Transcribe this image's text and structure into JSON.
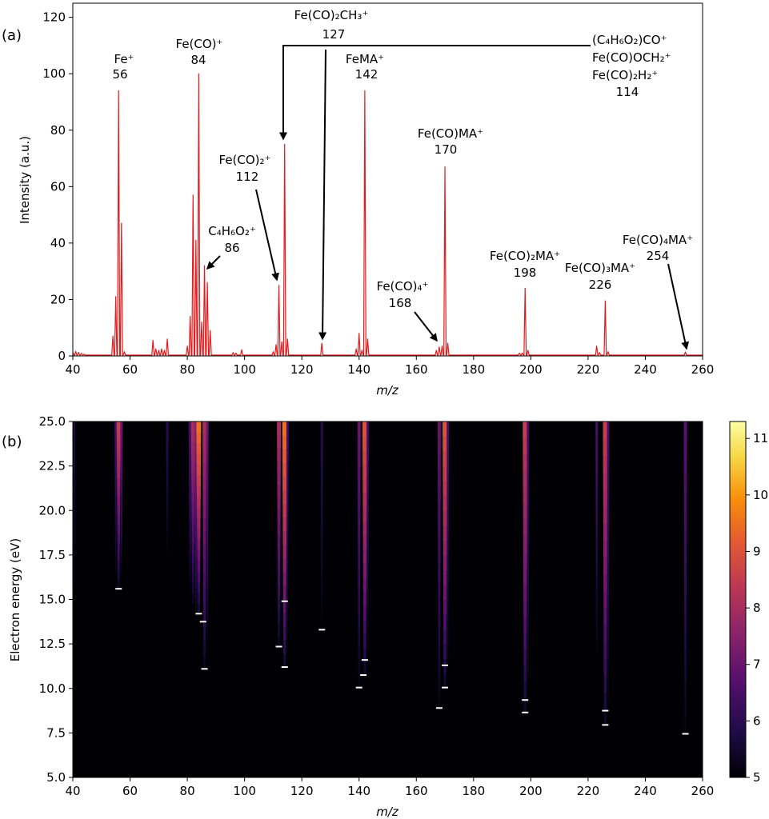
{
  "chart_data": [
    {
      "type": "line",
      "panel_label": "(a)",
      "xlabel": "m/z",
      "ylabel": "Intensity (a.u.)",
      "xlim": [
        40,
        260
      ],
      "ylim": [
        0,
        125
      ],
      "xticks": [
        40,
        60,
        80,
        100,
        120,
        140,
        160,
        180,
        200,
        220,
        240,
        260
      ],
      "yticks": [
        0,
        20,
        40,
        60,
        80,
        100,
        120
      ],
      "line_color": "#e41a1c",
      "series": [
        {
          "name": "mass spectrum",
          "peaks": [
            [
              40,
              1.2
            ],
            [
              41,
              1.6
            ],
            [
              42,
              1.3
            ],
            [
              43,
              0.9
            ],
            [
              44,
              0.6
            ],
            [
              54,
              7
            ],
            [
              55,
              21
            ],
            [
              56,
              94
            ],
            [
              57,
              47
            ],
            [
              58,
              1.5
            ],
            [
              68,
              5.5
            ],
            [
              69,
              2.5
            ],
            [
              70,
              2
            ],
            [
              71,
              2.5
            ],
            [
              72,
              2
            ],
            [
              73,
              6
            ],
            [
              80,
              3.5
            ],
            [
              81,
              14
            ],
            [
              82,
              57
            ],
            [
              83,
              41
            ],
            [
              84,
              100
            ],
            [
              85,
              12
            ],
            [
              86,
              32
            ],
            [
              87,
              26
            ],
            [
              88,
              9
            ],
            [
              96,
              1.2
            ],
            [
              97,
              1
            ],
            [
              99,
              2.2
            ],
            [
              110,
              1.5
            ],
            [
              111,
              4
            ],
            [
              112,
              25
            ],
            [
              113,
              5
            ],
            [
              114,
              75
            ],
            [
              115,
              6
            ],
            [
              127,
              4.5
            ],
            [
              139,
              2.5
            ],
            [
              140,
              8
            ],
            [
              141,
              2
            ],
            [
              142,
              94
            ],
            [
              143,
              6
            ],
            [
              167,
              2
            ],
            [
              168,
              3.2
            ],
            [
              169,
              3.5
            ],
            [
              170,
              67
            ],
            [
              171,
              4.5
            ],
            [
              196,
              1
            ],
            [
              197,
              1
            ],
            [
              198,
              24
            ],
            [
              199,
              2
            ],
            [
              223,
              3.5
            ],
            [
              224,
              1.2
            ],
            [
              226,
              19.5
            ],
            [
              227,
              1.5
            ],
            [
              254,
              1.4
            ]
          ]
        }
      ],
      "annotations": [
        {
          "formula": "Fe⁺",
          "mass": "56"
        },
        {
          "formula": "Fe(CO)⁺",
          "mass": "84"
        },
        {
          "formula": "Fe(CO)₂CH₃⁺",
          "mass": "127"
        },
        {
          "formula": "FeMA⁺",
          "mass": "142"
        },
        {
          "formula_lines": [
            "(C₄H₆O₂)CO⁺",
            "Fe(CO)OCH₂⁺",
            "Fe(CO)₂H₂⁺"
          ],
          "mass": "114"
        },
        {
          "formula": "Fe(CO)MA⁺",
          "mass": "170"
        },
        {
          "formula": "Fe(CO)₂⁺",
          "mass": "112"
        },
        {
          "formula": "C₄H₆O₂⁺",
          "mass": "86"
        },
        {
          "formula": "Fe(CO)₄⁺",
          "mass": "168"
        },
        {
          "formula": "Fe(CO)₂MA⁺",
          "mass": "198"
        },
        {
          "formula": "Fe(CO)₃MA⁺",
          "mass": "226"
        },
        {
          "formula": "Fe(CO)₄MA⁺",
          "mass": "254"
        }
      ]
    },
    {
      "type": "heatmap",
      "panel_label": "(b)",
      "xlabel": "m/z",
      "ylabel": "Electron energy (eV)",
      "xlim": [
        40,
        260
      ],
      "ylim": [
        5.0,
        25.0
      ],
      "xticks": [
        40,
        60,
        80,
        100,
        120,
        140,
        160,
        180,
        200,
        220,
        240,
        260
      ],
      "yticks": [
        "5.0",
        "7.5",
        "10.0",
        "12.5",
        "15.0",
        "17.5",
        "20.0",
        "22.5",
        "25.0"
      ],
      "colormap": "inferno",
      "colorbar_range": [
        5,
        11.3
      ],
      "colorbar_ticks": [
        5,
        6,
        7,
        8,
        9,
        10,
        11
      ],
      "appearance_energies": [
        [
          56,
          15.6
        ],
        [
          84,
          14.2
        ],
        [
          85.5,
          13.75
        ],
        [
          86,
          11.1
        ],
        [
          112,
          12.35
        ],
        [
          114,
          14.9
        ],
        [
          114,
          11.2
        ],
        [
          127,
          13.3
        ],
        [
          140,
          10.05
        ],
        [
          141.5,
          10.75
        ],
        [
          142,
          11.6
        ],
        [
          168,
          8.9
        ],
        [
          170,
          10.05
        ],
        [
          170,
          11.3
        ],
        [
          198,
          9.35
        ],
        [
          198,
          8.65
        ],
        [
          226,
          8.75
        ],
        [
          226,
          7.95
        ],
        [
          254,
          7.45
        ]
      ],
      "streaks": [
        {
          "mz": 40.5,
          "width": 1,
          "onset": 15.5,
          "max": 6.0
        },
        {
          "mz": 55,
          "width": 1.5,
          "onset": 16.5,
          "max": 6.5
        },
        {
          "mz": 56,
          "width": 2.5,
          "onset": 15.6,
          "max": 8.5
        },
        {
          "mz": 57,
          "width": 1.5,
          "onset": 16.5,
          "max": 7.0
        },
        {
          "mz": 73,
          "width": 1.5,
          "onset": 17.5,
          "max": 6.0
        },
        {
          "mz": 81,
          "width": 2,
          "onset": 15.5,
          "max": 6.5
        },
        {
          "mz": 82,
          "width": 2.5,
          "onset": 14.8,
          "max": 8.0
        },
        {
          "mz": 83,
          "width": 2,
          "onset": 14.5,
          "max": 7.5
        },
        {
          "mz": 84,
          "width": 3,
          "onset": 14.2,
          "max": 9.5
        },
        {
          "mz": 86,
          "width": 2.5,
          "onset": 11.1,
          "max": 8.0
        },
        {
          "mz": 87,
          "width": 1.5,
          "onset": 13.0,
          "max": 7.0
        },
        {
          "mz": 112,
          "width": 2.5,
          "onset": 12.3,
          "max": 8.0
        },
        {
          "mz": 114,
          "width": 3,
          "onset": 11.2,
          "max": 9.5
        },
        {
          "mz": 115,
          "width": 1.5,
          "onset": 13.0,
          "max": 6.5
        },
        {
          "mz": 127,
          "width": 1.5,
          "onset": 13.3,
          "max": 6.0
        },
        {
          "mz": 140,
          "width": 2,
          "onset": 10.0,
          "max": 7.0
        },
        {
          "mz": 142,
          "width": 3,
          "onset": 10.7,
          "max": 9.0
        },
        {
          "mz": 143,
          "width": 1.5,
          "onset": 12.0,
          "max": 6.5
        },
        {
          "mz": 168,
          "width": 2,
          "onset": 8.9,
          "max": 7.0
        },
        {
          "mz": 170,
          "width": 3,
          "onset": 10.0,
          "max": 9.0
        },
        {
          "mz": 171,
          "width": 1.5,
          "onset": 11.0,
          "max": 6.5
        },
        {
          "mz": 198,
          "width": 3,
          "onset": 8.6,
          "max": 8.5
        },
        {
          "mz": 199,
          "width": 1.5,
          "onset": 10.0,
          "max": 6.5
        },
        {
          "mz": 223,
          "width": 1.5,
          "onset": 12.0,
          "max": 6.5
        },
        {
          "mz": 226,
          "width": 3,
          "onset": 7.9,
          "max": 8.5
        },
        {
          "mz": 227,
          "width": 1.5,
          "onset": 9.0,
          "max": 6.5
        },
        {
          "mz": 254,
          "width": 2,
          "onset": 7.4,
          "max": 6.8
        }
      ]
    }
  ]
}
